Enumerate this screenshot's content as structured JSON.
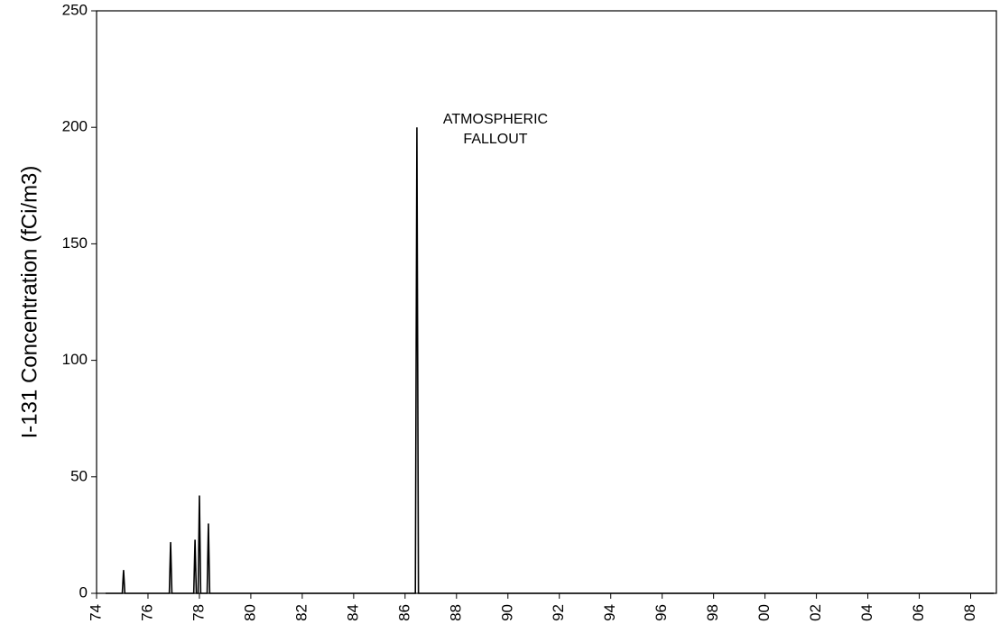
{
  "chart_data": {
    "type": "line",
    "y_label": "I-131 Concentration (fCi/m3)",
    "annotation": [
      "ATMOSPHERIC",
      "FALLOUT"
    ],
    "x": [
      74.35,
      75.0,
      75.05,
      75.1,
      76.83,
      76.88,
      76.93,
      77.78,
      77.83,
      77.88,
      77.95,
      78.0,
      78.05,
      78.3,
      78.35,
      78.4,
      86.4,
      86.46,
      86.52,
      108.9
    ],
    "series": [
      {
        "color": "#000000",
        "values": [
          0,
          0,
          10,
          0,
          0,
          22,
          0,
          0,
          23,
          0,
          0,
          42,
          0,
          0,
          30,
          0,
          0,
          200,
          0,
          0
        ]
      }
    ],
    "xlim": [
      74,
      109
    ],
    "xticks": [
      74,
      76,
      78,
      80,
      82,
      84,
      86,
      88,
      90,
      92,
      94,
      96,
      98,
      {
        "value": 100,
        "label": "00"
      },
      {
        "value": 102,
        "label": "02"
      },
      {
        "value": 104,
        "label": "04"
      },
      {
        "value": 106,
        "label": "06"
      },
      {
        "value": 108,
        "label": "08"
      }
    ],
    "ylim": [
      0,
      250
    ],
    "yticks": [
      0,
      50,
      100,
      150,
      200,
      250
    ]
  }
}
